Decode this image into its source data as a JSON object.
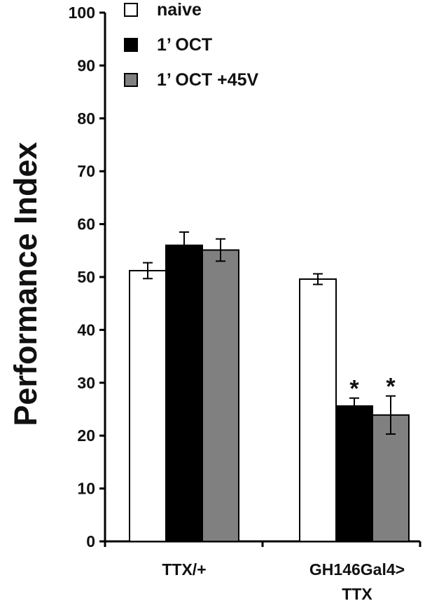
{
  "chart_data": {
    "type": "bar",
    "ylabel": "Performance Index",
    "xlabel": "",
    "ylim": [
      0,
      100
    ],
    "yticks": [
      0,
      10,
      20,
      30,
      40,
      50,
      60,
      70,
      80,
      90,
      100
    ],
    "categories": [
      [
        "TTX/+"
      ],
      [
        "GH146Gal4>",
        "TTX"
      ]
    ],
    "legend_position": "top-left",
    "series": [
      {
        "name": "naive",
        "color": "#ffffff",
        "values": [
          51.2,
          49.6
        ],
        "errors": [
          1.5,
          1.0
        ],
        "significance": [
          "",
          ""
        ]
      },
      {
        "name": "1’ OCT",
        "color": "#000000",
        "values": [
          56.0,
          25.6
        ],
        "errors": [
          2.5,
          1.5
        ],
        "significance": [
          "",
          "*"
        ]
      },
      {
        "name": "1’ OCT +45V",
        "color": "#808080",
        "values": [
          55.1,
          23.9
        ],
        "errors": [
          2.1,
          3.6
        ],
        "significance": [
          "",
          "*"
        ]
      }
    ]
  }
}
